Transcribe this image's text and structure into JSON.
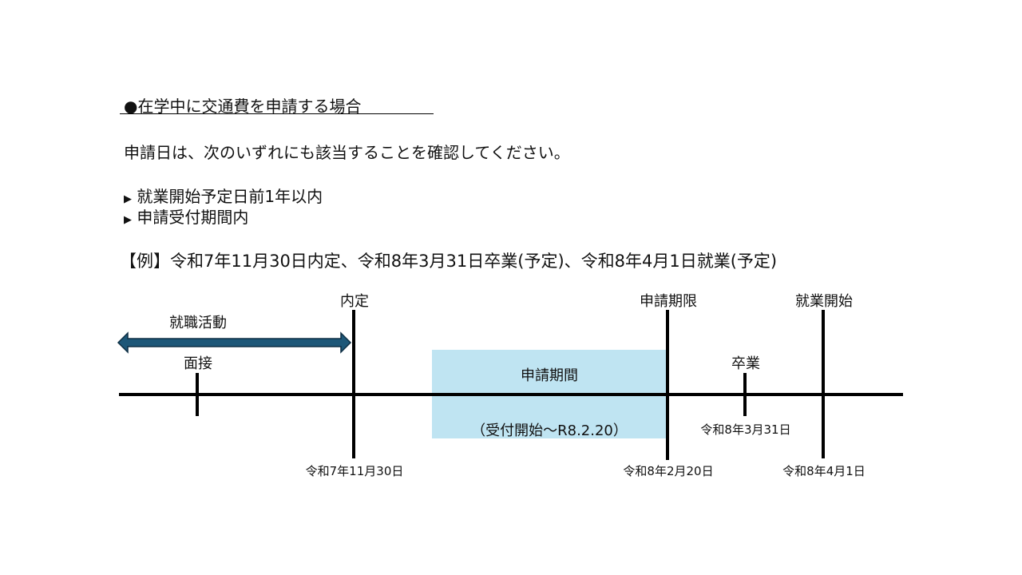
{
  "heading": "●在学中に交通費を申請する場合",
  "intro": "申請日は、次のいずれにも該当することを確認してください。",
  "conditions": [
    "就業開始予定日前1年以内",
    "申請受付期間内"
  ],
  "bullet_icon": "triangle-right-icon",
  "example": "【例】令和7年11月30日内定、令和8年3月31日卒業(予定)、令和8年4月1日就業(予定)",
  "timeline": {
    "job_hunting": "就職活動",
    "interview": "面接",
    "offer": {
      "label": "内定",
      "date": "令和7年11月30日"
    },
    "period": {
      "label": "申請期間",
      "sub": "（受付開始～R8.2.20）"
    },
    "deadline": {
      "label": "申請期限",
      "date": "令和8年2月20日"
    },
    "graduation": {
      "label": "卒業",
      "date": "令和8年3月31日"
    },
    "start": {
      "label": "就業開始",
      "date": "令和8年4月1日"
    },
    "colors": {
      "arrow": "#1d5778",
      "period_fill": "#bfe4f2"
    }
  }
}
